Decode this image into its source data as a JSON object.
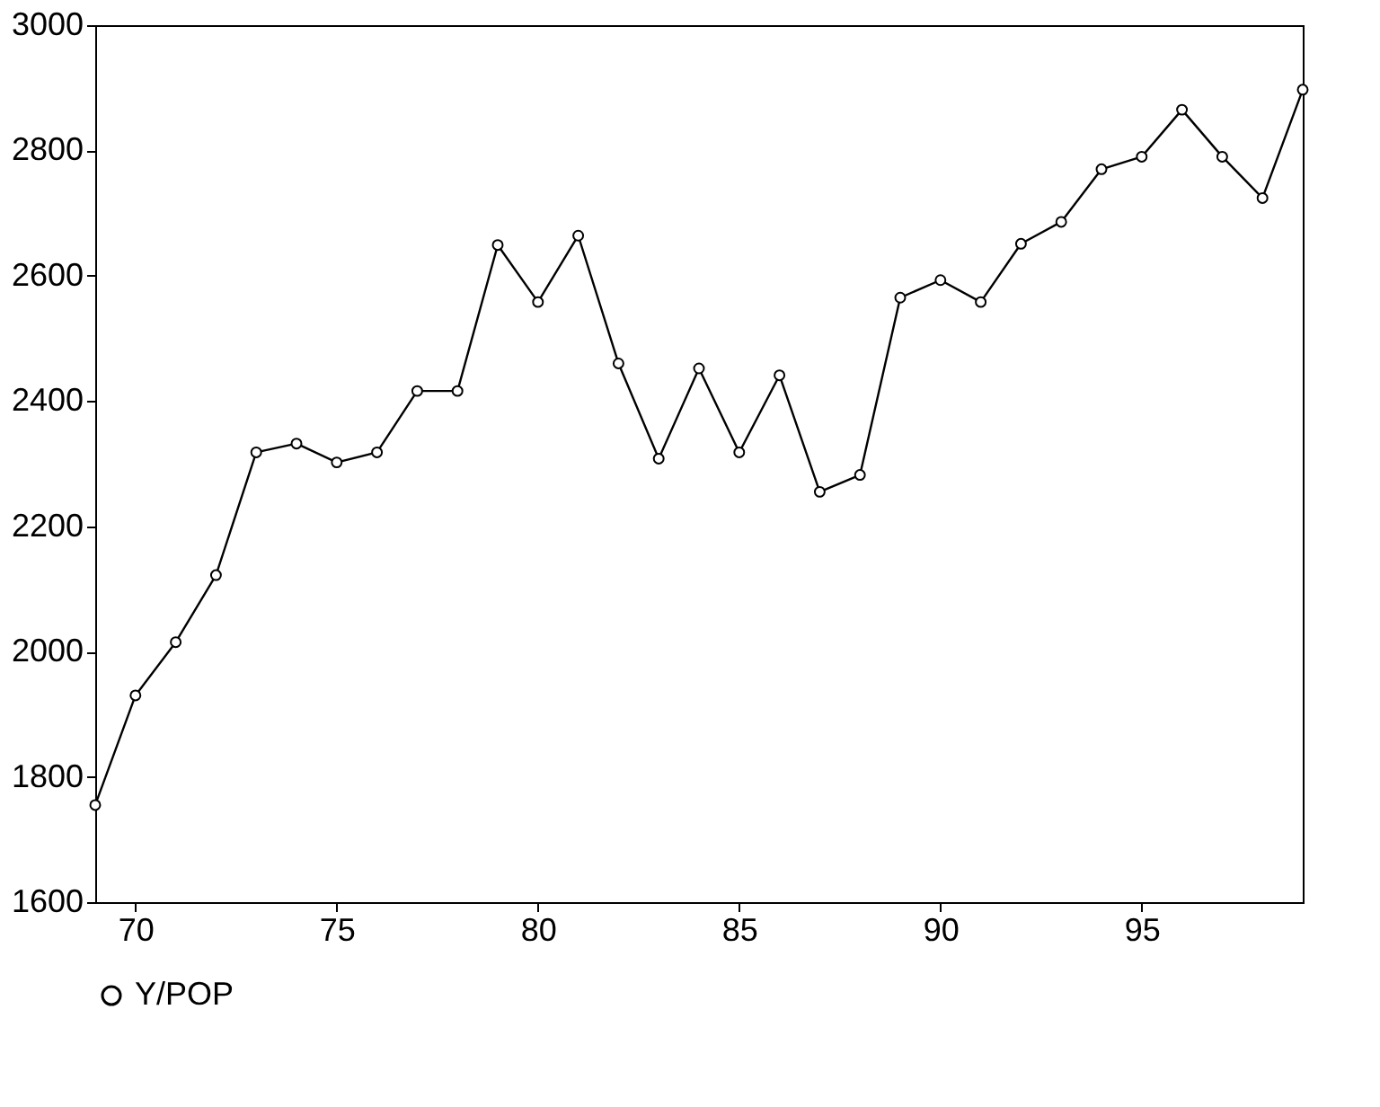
{
  "chart_data": {
    "type": "line",
    "x": [
      69,
      70,
      71,
      72,
      73,
      74,
      75,
      76,
      77,
      78,
      79,
      80,
      81,
      82,
      83,
      84,
      85,
      86,
      87,
      88,
      89,
      90,
      91,
      92,
      93,
      94,
      95,
      96,
      97,
      98,
      99
    ],
    "series": [
      {
        "name": "Y/POP",
        "color": "#000000",
        "values": [
          1755,
          1930,
          2015,
          2122,
          2318,
          2332,
          2302,
          2318,
          2416,
          2416,
          2649,
          2558,
          2664,
          2460,
          2308,
          2452,
          2318,
          2441,
          2255,
          2282,
          2565,
          2593,
          2558,
          2651,
          2686,
          2770,
          2790,
          2865,
          2790,
          2724,
          2897
        ]
      }
    ],
    "xlim": [
      69,
      99
    ],
    "xticks": [
      70,
      75,
      80,
      85,
      90,
      95
    ],
    "ylim": [
      1600,
      3000
    ],
    "yticks": [
      1600,
      1800,
      2000,
      2200,
      2400,
      2600,
      2800,
      3000
    ],
    "marker": "circle",
    "line_style": "solid",
    "legend": "bottom",
    "grid": false
  }
}
